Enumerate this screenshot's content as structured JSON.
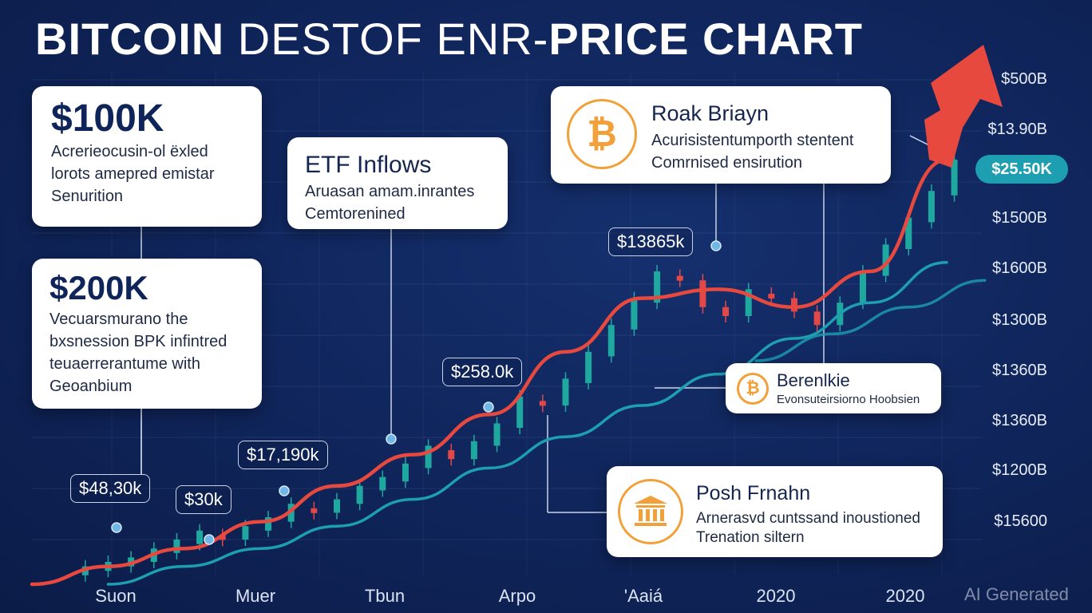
{
  "title": {
    "part1": "BITCOIN",
    "part2": " DESTOF ENR-",
    "part3": "PRICE CHART"
  },
  "y_ticks": [
    "$500B",
    "$13.90B",
    "$1500B",
    "$1600B",
    "$1300B",
    "$1360B",
    "$1360B",
    "$1200B",
    "$15600"
  ],
  "x_ticks": [
    "Suon",
    "Muer",
    "Tbun",
    "Arpo",
    "'Aaiá",
    "2020",
    "2020"
  ],
  "price_pill": "$25.50K",
  "point_labels": [
    "$48,30k",
    "$30k",
    "$17,190k",
    "$258.0k",
    "$13865k"
  ],
  "cards": {
    "c100k": {
      "value": "$100K",
      "lines": [
        "Acrerieocusin-ol ëxled",
        "lorots amepred emistar",
        "Senurition"
      ]
    },
    "c200k": {
      "value": "$200K",
      "lines": [
        "Vecuarsmurano the",
        "bxsnession BPK infintred",
        "teuaerrerantume with",
        "Geoanbium"
      ]
    },
    "etf": {
      "title": "ETF Inflows",
      "lines": [
        "Aruasan amam.inrantes",
        "Cemtorenined"
      ]
    },
    "roak": {
      "title": "Roak Briayn",
      "lines": [
        "Acurisistentumporth stentent",
        "Comrnised ensirution"
      ]
    },
    "berenk": {
      "title": "Berenlkie",
      "lines": [
        "Evonsuteirsiorno Hoobsien"
      ]
    },
    "posh": {
      "title": "Posh Frnahn",
      "lines": [
        "Arnerasvd cuntssand inoustioned",
        "Trenation siltern"
      ]
    }
  },
  "watermark": "AI Generated",
  "colors": {
    "background": "#0f2459",
    "trend_red": "#e8493f",
    "trend_teal": "#1e9fb1",
    "candle_up": "#1fa8a0",
    "candle_down": "#e34848",
    "coin_orange": "#f2a03a"
  },
  "chart_data": {
    "type": "candlestick",
    "title": "BITCOIN DESTOF ENR-PRICE CHART",
    "x_tick_labels": [
      "Suon",
      "Muer",
      "Tbun",
      "Arpo",
      "'Aaiá",
      "2020",
      "2020"
    ],
    "y_tick_labels": [
      "$500B",
      "$13.90B",
      "$1500B",
      "$1600B",
      "$1300B",
      "$1360B",
      "$1360B",
      "$1200B",
      "$15600"
    ],
    "candles": [
      {
        "x": 0.07,
        "o": 0.02,
        "c": 0.04
      },
      {
        "x": 0.1,
        "o": 0.03,
        "c": 0.05
      },
      {
        "x": 0.13,
        "o": 0.04,
        "c": 0.06
      },
      {
        "x": 0.16,
        "o": 0.05,
        "c": 0.08
      },
      {
        "x": 0.19,
        "o": 0.07,
        "c": 0.1
      },
      {
        "x": 0.22,
        "o": 0.09,
        "c": 0.12
      },
      {
        "x": 0.25,
        "o": 0.11,
        "c": 0.1
      },
      {
        "x": 0.28,
        "o": 0.1,
        "c": 0.13
      },
      {
        "x": 0.31,
        "o": 0.12,
        "c": 0.15
      },
      {
        "x": 0.34,
        "o": 0.14,
        "c": 0.18
      },
      {
        "x": 0.37,
        "o": 0.17,
        "c": 0.16
      },
      {
        "x": 0.4,
        "o": 0.16,
        "c": 0.19
      },
      {
        "x": 0.43,
        "o": 0.18,
        "c": 0.22
      },
      {
        "x": 0.46,
        "o": 0.21,
        "c": 0.24
      },
      {
        "x": 0.49,
        "o": 0.23,
        "c": 0.27
      },
      {
        "x": 0.52,
        "o": 0.26,
        "c": 0.31
      },
      {
        "x": 0.55,
        "o": 0.3,
        "c": 0.28
      },
      {
        "x": 0.58,
        "o": 0.28,
        "c": 0.32
      },
      {
        "x": 0.61,
        "o": 0.31,
        "c": 0.36
      },
      {
        "x": 0.64,
        "o": 0.35,
        "c": 0.42
      },
      {
        "x": 0.67,
        "o": 0.41,
        "c": 0.4
      },
      {
        "x": 0.7,
        "o": 0.4,
        "c": 0.46
      },
      {
        "x": 0.73,
        "o": 0.45,
        "c": 0.52
      },
      {
        "x": 0.76,
        "o": 0.51,
        "c": 0.58
      },
      {
        "x": 0.79,
        "o": 0.57,
        "c": 0.64
      },
      {
        "x": 0.82,
        "o": 0.63,
        "c": 0.7
      },
      {
        "x": 0.85,
        "o": 0.69,
        "c": 0.68
      },
      {
        "x": 0.88,
        "o": 0.68,
        "c": 0.62
      },
      {
        "x": 0.91,
        "o": 0.62,
        "c": 0.6
      },
      {
        "x": 0.94,
        "o": 0.6,
        "c": 0.66
      },
      {
        "x": 0.97,
        "o": 0.65,
        "c": 0.64
      },
      {
        "x": 1.0,
        "o": 0.64,
        "c": 0.61
      },
      {
        "x": 1.03,
        "o": 0.61,
        "c": 0.58
      },
      {
        "x": 1.06,
        "o": 0.58,
        "c": 0.63
      },
      {
        "x": 1.09,
        "o": 0.63,
        "c": 0.7
      },
      {
        "x": 1.12,
        "o": 0.69,
        "c": 0.76
      },
      {
        "x": 1.15,
        "o": 0.75,
        "c": 0.82
      },
      {
        "x": 1.18,
        "o": 0.81,
        "c": 0.88
      },
      {
        "x": 1.21,
        "o": 0.87,
        "c": 0.95
      }
    ],
    "series": [
      {
        "color": "#e8493f",
        "x": [
          0.0,
          0.1,
          0.2,
          0.3,
          0.4,
          0.5,
          0.6,
          0.7,
          0.8,
          0.9,
          1.0,
          1.1,
          1.2
        ],
        "y": [
          0.0,
          0.04,
          0.08,
          0.14,
          0.22,
          0.29,
          0.38,
          0.52,
          0.64,
          0.66,
          0.62,
          0.7,
          0.95
        ]
      },
      {
        "color": "#1e9fb1",
        "x": [
          0.1,
          0.2,
          0.3,
          0.4,
          0.5,
          0.6,
          0.7,
          0.8,
          0.9,
          1.0,
          1.1,
          1.2
        ],
        "y": [
          0.0,
          0.04,
          0.08,
          0.13,
          0.19,
          0.26,
          0.33,
          0.4,
          0.47,
          0.55,
          0.63,
          0.72
        ]
      },
      {
        "color": "#1e9fb1",
        "x": [
          0.95,
          1.05,
          1.15,
          1.25
        ],
        "y": [
          0.5,
          0.56,
          0.62,
          0.68
        ]
      }
    ]
  }
}
